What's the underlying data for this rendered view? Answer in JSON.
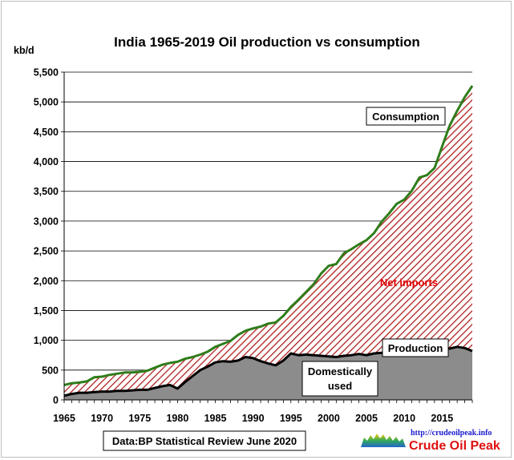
{
  "chart_data": {
    "type": "area",
    "title": "India 1965-2019 Oil production vs consumption",
    "ylabel": "kb/d",
    "xlabel": "",
    "xlim": [
      1965,
      2019
    ],
    "ylim": [
      0,
      5500
    ],
    "x_ticks": [
      1965,
      1970,
      1975,
      1980,
      1985,
      1990,
      1995,
      2000,
      2005,
      2010,
      2015
    ],
    "y_ticks": [
      0,
      500,
      1000,
      1500,
      2000,
      2500,
      3000,
      3500,
      4000,
      4500,
      5000,
      5500
    ],
    "y_tick_labels": [
      "0",
      "500",
      "1,000",
      "1,500",
      "2,000",
      "2,500",
      "3,000",
      "3,500",
      "4,000",
      "4,500",
      "5,000",
      "5,500"
    ],
    "grid": "horizontal",
    "x": [
      1965,
      1966,
      1967,
      1968,
      1969,
      1970,
      1971,
      1972,
      1973,
      1974,
      1975,
      1976,
      1977,
      1978,
      1979,
      1980,
      1981,
      1982,
      1983,
      1984,
      1985,
      1986,
      1987,
      1988,
      1989,
      1990,
      1991,
      1992,
      1993,
      1994,
      1995,
      1996,
      1997,
      1998,
      1999,
      2000,
      2001,
      2002,
      2003,
      2004,
      2005,
      2006,
      2007,
      2008,
      2009,
      2010,
      2011,
      2012,
      2013,
      2014,
      2015,
      2016,
      2017,
      2018,
      2019
    ],
    "series": [
      {
        "name": "Consumption",
        "color": "#2e7d1a",
        "values": [
          250,
          280,
          290,
          310,
          380,
          390,
          420,
          440,
          460,
          460,
          470,
          490,
          540,
          590,
          620,
          640,
          690,
          720,
          760,
          810,
          890,
          940,
          990,
          1090,
          1160,
          1200,
          1230,
          1280,
          1300,
          1410,
          1560,
          1680,
          1810,
          1940,
          2120,
          2250,
          2280,
          2460,
          2530,
          2610,
          2680,
          2800,
          2990,
          3130,
          3290,
          3360,
          3510,
          3730,
          3770,
          3890,
          4250,
          4600,
          4850,
          5080,
          5270
        ]
      },
      {
        "name": "Production",
        "color": "#000000",
        "values": [
          70,
          100,
          120,
          120,
          130,
          140,
          140,
          150,
          150,
          160,
          170,
          170,
          200,
          230,
          250,
          190,
          300,
          400,
          500,
          560,
          630,
          650,
          640,
          660,
          720,
          700,
          650,
          610,
          580,
          660,
          780,
          750,
          760,
          750,
          740,
          730,
          720,
          740,
          750,
          770,
          750,
          780,
          790,
          800,
          800,
          820,
          860,
          880,
          880,
          880,
          870,
          860,
          890,
          870,
          820
        ]
      }
    ],
    "annotations": [
      "Consumption",
      "Net imports",
      "Production",
      "Domestically used"
    ],
    "source": "Data:BP Statistical Review June 2020",
    "logo": {
      "url": "http://crudeoilpeak.info",
      "name": "Crude Oil Peak"
    }
  }
}
